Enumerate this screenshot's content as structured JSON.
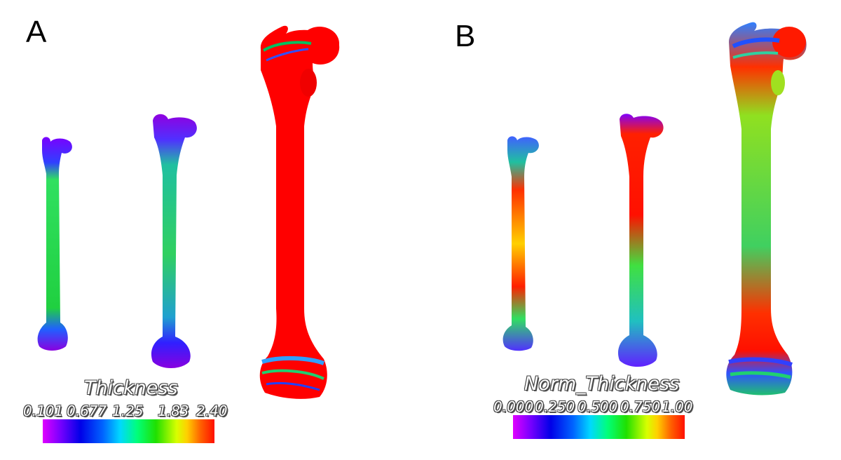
{
  "panels": [
    {
      "letter": "A",
      "legend_title": "Thickness",
      "legend_ticks": [
        "0.101",
        "0.677",
        "1.25",
        "1.83",
        "2.40"
      ]
    },
    {
      "letter": "B",
      "legend_title": "Norm_Thickness",
      "legend_ticks": [
        "0.000",
        "0.250",
        "0.500",
        "0.750",
        "1.00"
      ]
    }
  ],
  "colors": {
    "thin": "#8000ff",
    "mid": "#00ff80",
    "thick": "#ff0000"
  }
}
